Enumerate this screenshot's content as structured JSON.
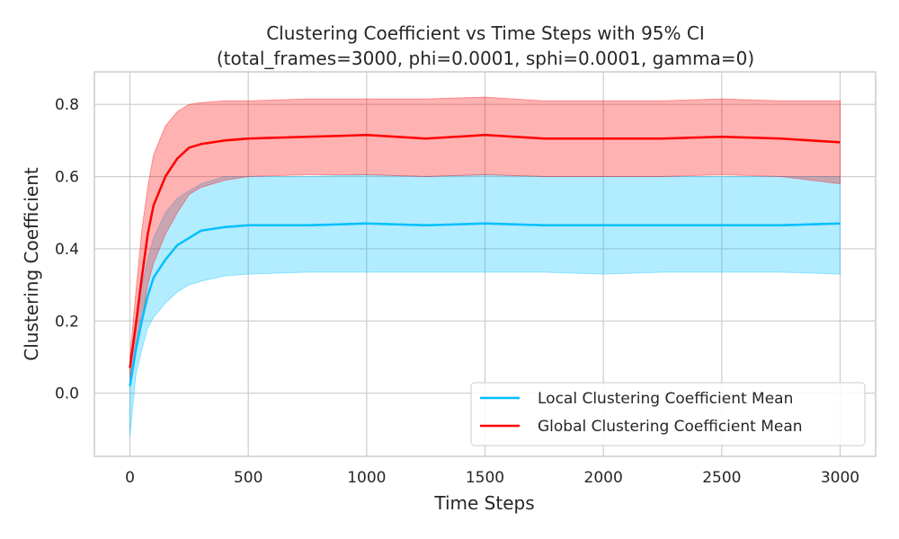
{
  "chart_data": {
    "type": "line",
    "title": "Clustering Coefficient vs Time Steps with 95% CI",
    "subtitle": "(total_frames=3000, phi=0.0001, sphi=0.0001, gamma=0)",
    "xlabel": "Time Steps",
    "ylabel": "Clustering Coefficient",
    "xlim": [
      -150,
      3150
    ],
    "ylim": [
      -0.175,
      0.89
    ],
    "xticks": [
      0,
      500,
      1000,
      1500,
      2000,
      2500,
      3000
    ],
    "yticks": [
      0.0,
      0.2,
      0.4,
      0.6,
      0.8
    ],
    "xtick_labels": [
      "0",
      "500",
      "1000",
      "1500",
      "2000",
      "2500",
      "3000"
    ],
    "ytick_labels": [
      "0.0",
      "0.2",
      "0.4",
      "0.6",
      "0.8"
    ],
    "grid": true,
    "legend_position": "lower-right",
    "x": [
      0,
      25,
      50,
      75,
      100,
      150,
      200,
      250,
      300,
      400,
      500,
      750,
      1000,
      1250,
      1500,
      1750,
      2000,
      2250,
      2500,
      2750,
      3000
    ],
    "series": [
      {
        "name": "Local Clustering Coefficient Mean",
        "color": "#00bfff",
        "values": [
          0.02,
          0.12,
          0.2,
          0.27,
          0.32,
          0.37,
          0.41,
          0.43,
          0.45,
          0.46,
          0.465,
          0.465,
          0.47,
          0.465,
          0.47,
          0.465,
          0.465,
          0.465,
          0.465,
          0.465,
          0.47
        ],
        "ci_lower": [
          -0.12,
          0.05,
          0.12,
          0.18,
          0.21,
          0.25,
          0.28,
          0.3,
          0.31,
          0.325,
          0.33,
          0.335,
          0.335,
          0.335,
          0.335,
          0.335,
          0.33,
          0.335,
          0.335,
          0.335,
          0.33
        ],
        "ci_upper": [
          0.08,
          0.2,
          0.3,
          0.37,
          0.43,
          0.5,
          0.54,
          0.56,
          0.58,
          0.6,
          0.6,
          0.6,
          0.605,
          0.6,
          0.605,
          0.6,
          0.6,
          0.6,
          0.6,
          0.6,
          0.6
        ]
      },
      {
        "name": "Global Clustering Coefficient Mean",
        "color": "#ff0000",
        "values": [
          0.07,
          0.19,
          0.32,
          0.44,
          0.52,
          0.6,
          0.65,
          0.68,
          0.69,
          0.7,
          0.705,
          0.71,
          0.715,
          0.705,
          0.715,
          0.705,
          0.705,
          0.705,
          0.71,
          0.705,
          0.695
        ],
        "ci_lower": [
          0.04,
          0.12,
          0.2,
          0.3,
          0.36,
          0.44,
          0.5,
          0.55,
          0.57,
          0.59,
          0.6,
          0.605,
          0.605,
          0.6,
          0.605,
          0.6,
          0.6,
          0.6,
          0.605,
          0.6,
          0.58
        ],
        "ci_upper": [
          0.1,
          0.28,
          0.45,
          0.57,
          0.66,
          0.74,
          0.78,
          0.8,
          0.805,
          0.81,
          0.81,
          0.815,
          0.815,
          0.815,
          0.82,
          0.81,
          0.81,
          0.81,
          0.815,
          0.81,
          0.81
        ]
      }
    ]
  }
}
